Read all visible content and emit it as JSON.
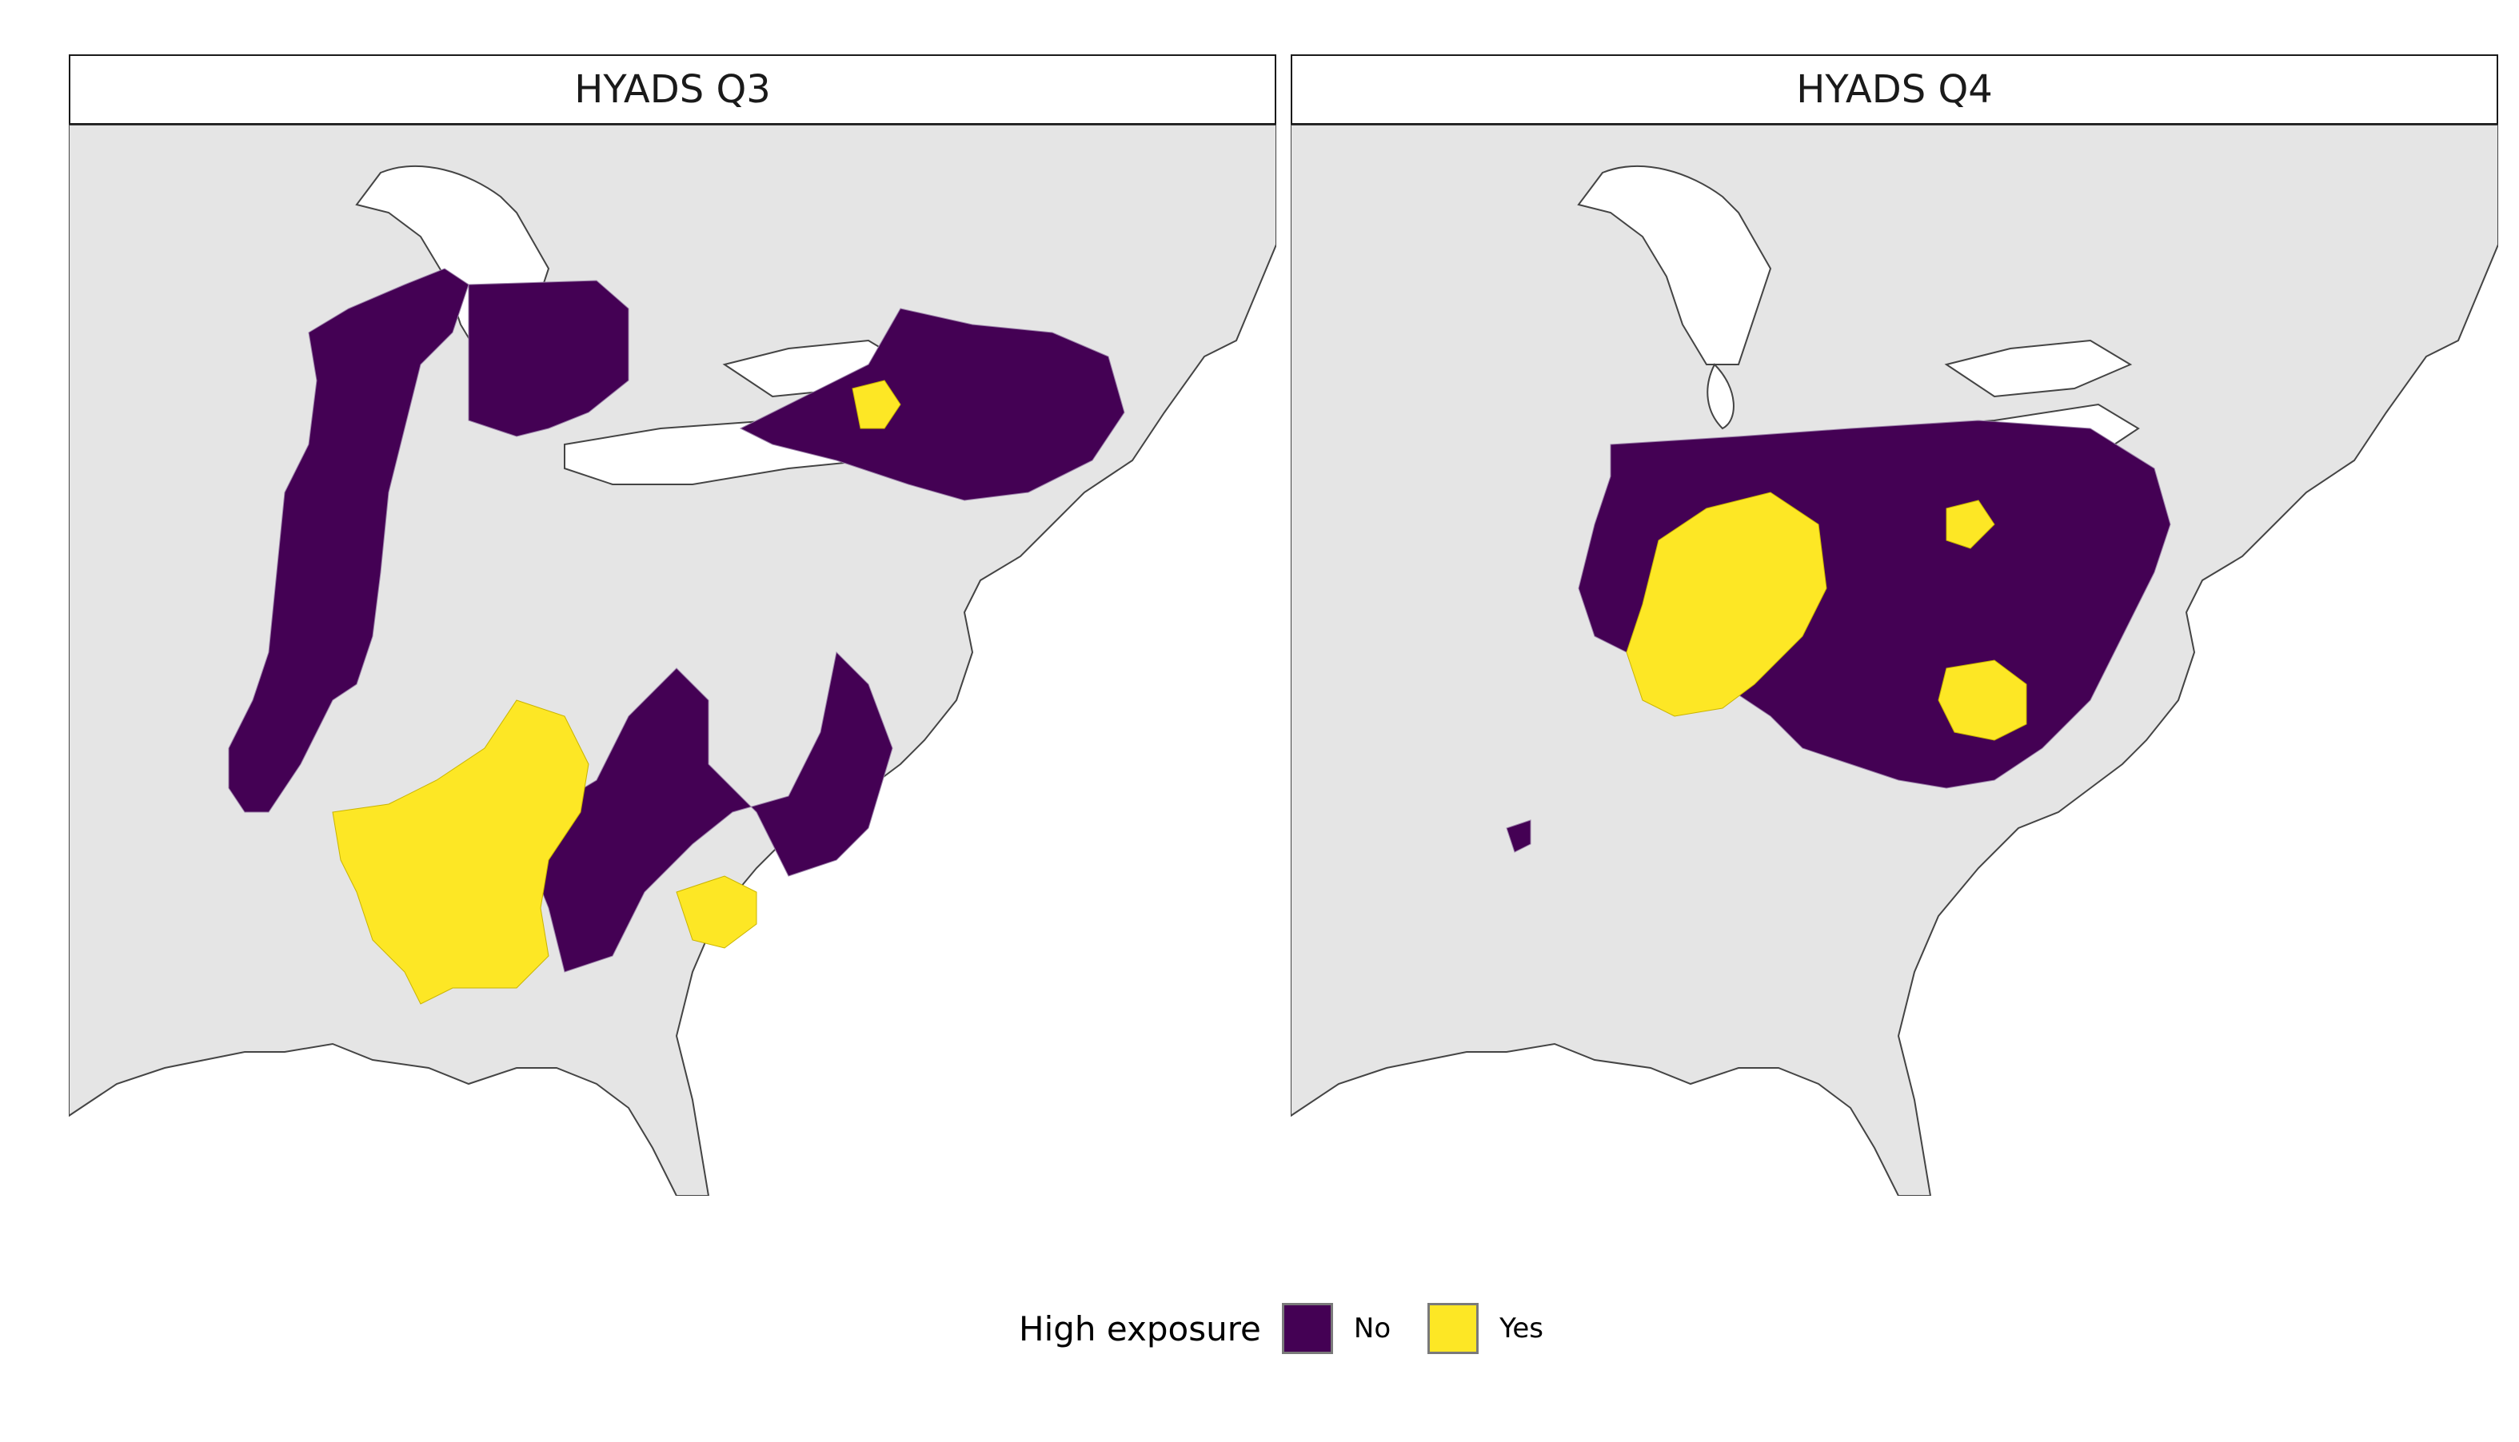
{
  "panels": [
    {
      "title": "HYADS Q3"
    },
    {
      "title": "HYADS Q4"
    }
  ],
  "legend": {
    "title": "High exposure",
    "items": [
      {
        "label": "No",
        "color": "#440154"
      },
      {
        "label": "Yes",
        "color": "#FDE725"
      }
    ]
  },
  "colors": {
    "land": "#E5E5E5",
    "water": "#FFFFFF",
    "coast": "#444444",
    "no": "#440154",
    "yes": "#FDE725"
  }
}
